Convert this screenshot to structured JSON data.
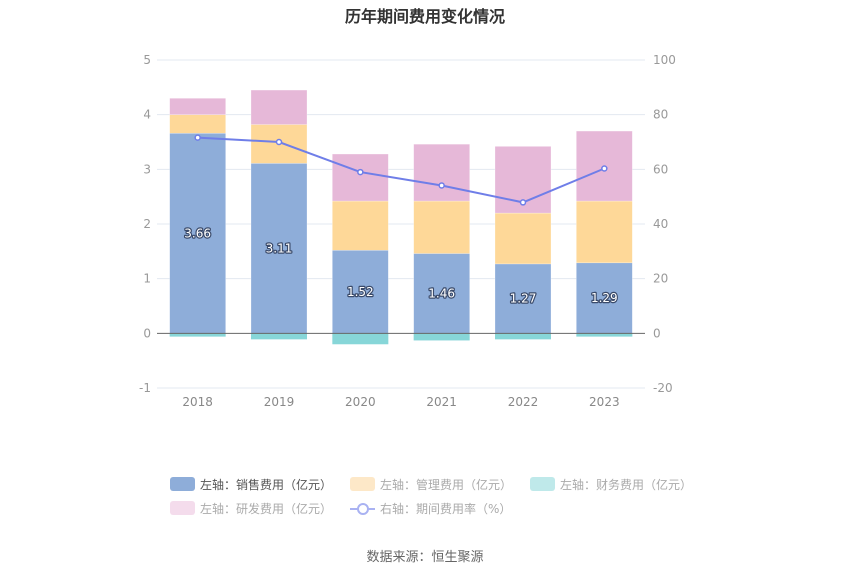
{
  "title": "历年期间费用变化情况",
  "source": "数据来源：恒生聚源",
  "colors": {
    "sales": "#8eadd9",
    "management": "#fed898",
    "finance": "#87d6d8",
    "rnd": "#e6b8d8",
    "ratio": "#6f7ee8",
    "sales_legend": "#8eadd9",
    "management_legend": "#fde8c8",
    "finance_legend": "#bfe9ea",
    "rnd_legend": "#f4dcec"
  },
  "legend": [
    {
      "label": "左轴：销售费用（亿元）",
      "key": "sales",
      "active": true
    },
    {
      "label": "左轴：管理费用（亿元）",
      "key": "management",
      "active": false
    },
    {
      "label": "左轴：财务费用（亿元）",
      "key": "finance",
      "active": false
    },
    {
      "label": "左轴：研发费用（亿元）",
      "key": "rnd",
      "active": false
    },
    {
      "label": "右轴：期间费用率（%）",
      "key": "ratio",
      "active": false
    }
  ],
  "chart_data": {
    "type": "bar",
    "stacked": true,
    "title": "历年期间费用变化情况",
    "categories": [
      "2018",
      "2019",
      "2020",
      "2021",
      "2022",
      "2023"
    ],
    "series": [
      {
        "name": "左轴：销售费用（亿元）",
        "key": "sales",
        "axis": "left",
        "type": "bar",
        "values": [
          3.66,
          3.11,
          1.52,
          1.46,
          1.27,
          1.29
        ],
        "show_labels": true
      },
      {
        "name": "左轴：管理费用（亿元）",
        "key": "management",
        "axis": "left",
        "type": "bar",
        "values": [
          0.34,
          0.71,
          0.9,
          0.96,
          0.93,
          1.13
        ]
      },
      {
        "name": "左轴：财务费用（亿元）",
        "key": "finance",
        "axis": "left",
        "type": "bar",
        "values": [
          -0.06,
          -0.11,
          -0.2,
          -0.13,
          -0.11,
          -0.06
        ]
      },
      {
        "name": "左轴：研发费用（亿元）",
        "key": "rnd",
        "axis": "left",
        "type": "bar",
        "values": [
          0.3,
          0.63,
          0.86,
          1.04,
          1.22,
          1.28
        ]
      },
      {
        "name": "右轴：期间费用率（%）",
        "key": "ratio",
        "axis": "right",
        "type": "line",
        "values": [
          71.6,
          70.0,
          59.0,
          54.1,
          47.9,
          60.3
        ]
      }
    ],
    "left_axis": {
      "ylim": [
        -1,
        5
      ],
      "ticks": [
        "5",
        "4",
        "3",
        "2",
        "1",
        "0",
        "-1"
      ],
      "tick_values": [
        5,
        4,
        3,
        2,
        1,
        0,
        -1
      ]
    },
    "right_axis": {
      "ylim": [
        -20,
        100
      ],
      "ticks": [
        "100",
        "80",
        "60",
        "40",
        "20",
        "0",
        "-20"
      ],
      "tick_values": [
        100,
        80,
        60,
        40,
        20,
        0,
        -20
      ]
    },
    "grid": true,
    "legend_position": "bottom"
  }
}
